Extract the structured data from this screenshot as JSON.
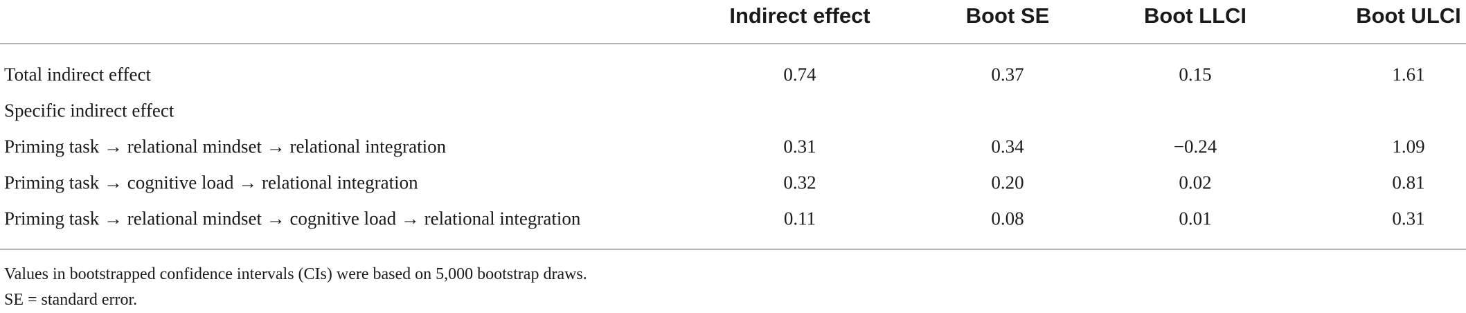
{
  "table": {
    "columns": [
      "",
      "Indirect effect",
      "Boot SE",
      "Boot LLCI",
      "Boot ULCI"
    ],
    "rows": [
      {
        "label": "Total indirect effect",
        "values": [
          "0.74",
          "0.37",
          "0.15",
          "1.61"
        ]
      },
      {
        "label": "Specific indirect effect",
        "values": [
          "",
          "",
          "",
          ""
        ]
      },
      {
        "label": "Priming task → relational mindset → relational integration",
        "values": [
          "0.31",
          "0.34",
          "−0.24",
          "1.09"
        ]
      },
      {
        "label": "Priming task → cognitive load → relational integration",
        "values": [
          "0.32",
          "0.20",
          "0.02",
          "0.81"
        ]
      },
      {
        "label": "Priming task → relational mindset → cognitive load → relational integration",
        "values": [
          "0.11",
          "0.08",
          "0.01",
          "0.31"
        ]
      }
    ]
  },
  "notes": [
    "Values in bootstrapped confidence intervals (CIs) were based on 5,000 bootstrap draws.",
    "SE = standard error."
  ]
}
